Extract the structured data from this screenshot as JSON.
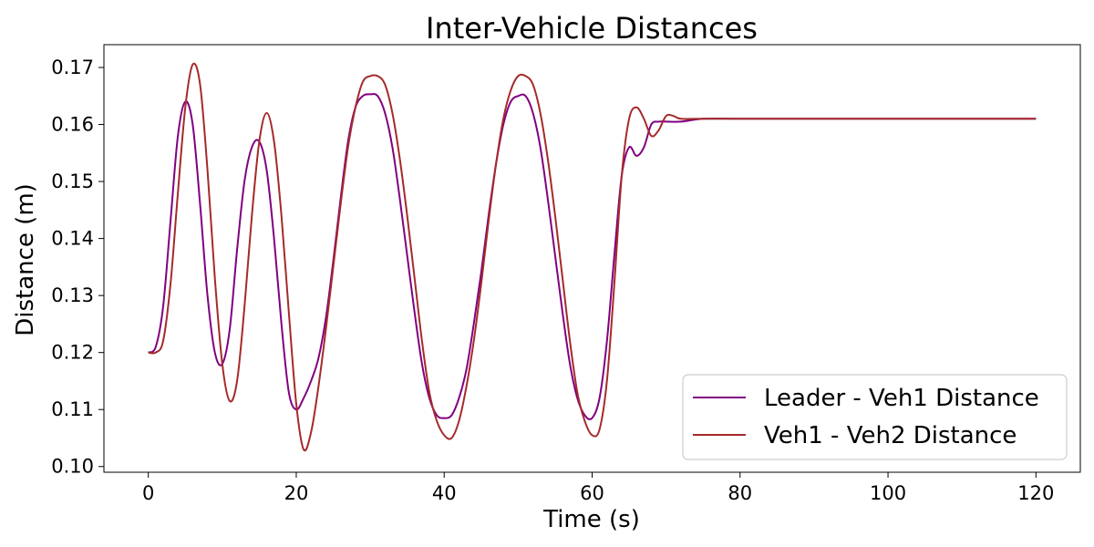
{
  "chart_data": {
    "type": "line",
    "title": "Inter-Vehicle Distances",
    "xlabel": "Time (s)",
    "ylabel": "Distance (m)",
    "xlim": [
      -6,
      126
    ],
    "ylim": [
      0.099,
      0.174
    ],
    "xticks": [
      0,
      20,
      40,
      60,
      80,
      100,
      120
    ],
    "yticks": [
      0.1,
      0.11,
      0.12,
      0.13,
      0.14,
      0.15,
      0.16,
      0.17
    ],
    "ytick_labels": [
      "0.10",
      "0.11",
      "0.12",
      "0.13",
      "0.14",
      "0.15",
      "0.16",
      "0.17"
    ],
    "grid": false,
    "legend_position": "lower-right",
    "series": [
      {
        "name": "Leader - Veh1 Distance",
        "color": "#800080",
        "points": [
          [
            0,
            0.12
          ],
          [
            1,
            0.121
          ],
          [
            2,
            0.128
          ],
          [
            3,
            0.143
          ],
          [
            4,
            0.158
          ],
          [
            5,
            0.164
          ],
          [
            6,
            0.16
          ],
          [
            7,
            0.146
          ],
          [
            8,
            0.13
          ],
          [
            9,
            0.12
          ],
          [
            10,
            0.118
          ],
          [
            11,
            0.124
          ],
          [
            12,
            0.138
          ],
          [
            13,
            0.15
          ],
          [
            14,
            0.156
          ],
          [
            15,
            0.157
          ],
          [
            16,
            0.152
          ],
          [
            17,
            0.14
          ],
          [
            18,
            0.125
          ],
          [
            19,
            0.113
          ],
          [
            20,
            0.11
          ],
          [
            21,
            0.112
          ],
          [
            22,
            0.115
          ],
          [
            23,
            0.119
          ],
          [
            24,
            0.126
          ],
          [
            25,
            0.136
          ],
          [
            26,
            0.147
          ],
          [
            27,
            0.157
          ],
          [
            28,
            0.163
          ],
          [
            29,
            0.165
          ],
          [
            30,
            0.1653
          ],
          [
            31,
            0.165
          ],
          [
            32,
            0.162
          ],
          [
            33,
            0.156
          ],
          [
            34,
            0.147
          ],
          [
            35,
            0.137
          ],
          [
            36,
            0.127
          ],
          [
            37,
            0.118
          ],
          [
            38,
            0.112
          ],
          [
            39,
            0.109
          ],
          [
            40,
            0.1085
          ],
          [
            41,
            0.109
          ],
          [
            42,
            0.112
          ],
          [
            43,
            0.117
          ],
          [
            44,
            0.125
          ],
          [
            45,
            0.134
          ],
          [
            46,
            0.144
          ],
          [
            47,
            0.153
          ],
          [
            48,
            0.16
          ],
          [
            49,
            0.164
          ],
          [
            50,
            0.165
          ],
          [
            51,
            0.165
          ],
          [
            52,
            0.162
          ],
          [
            53,
            0.156
          ],
          [
            54,
            0.147
          ],
          [
            55,
            0.137
          ],
          [
            56,
            0.127
          ],
          [
            57,
            0.118
          ],
          [
            58,
            0.112
          ],
          [
            59,
            0.109
          ],
          [
            60,
            0.1085
          ],
          [
            61,
            0.112
          ],
          [
            62,
            0.122
          ],
          [
            63,
            0.137
          ],
          [
            64,
            0.151
          ],
          [
            65,
            0.156
          ],
          [
            66,
            0.1545
          ],
          [
            67,
            0.156
          ],
          [
            68,
            0.16
          ],
          [
            69,
            0.1605
          ],
          [
            70,
            0.1605
          ],
          [
            72,
            0.1605
          ],
          [
            75,
            0.161
          ],
          [
            80,
            0.161
          ],
          [
            90,
            0.161
          ],
          [
            100,
            0.161
          ],
          [
            110,
            0.161
          ],
          [
            120,
            0.161
          ]
        ]
      },
      {
        "name": "Veh1 - Veh2 Distance",
        "color": "#A52A2A",
        "points": [
          [
            0,
            0.12
          ],
          [
            1,
            0.12
          ],
          [
            2,
            0.122
          ],
          [
            3,
            0.132
          ],
          [
            4,
            0.148
          ],
          [
            5,
            0.163
          ],
          [
            6,
            0.1705
          ],
          [
            7,
            0.167
          ],
          [
            8,
            0.152
          ],
          [
            9,
            0.133
          ],
          [
            10,
            0.118
          ],
          [
            11,
            0.1115
          ],
          [
            12,
            0.115
          ],
          [
            13,
            0.128
          ],
          [
            14,
            0.144
          ],
          [
            15,
            0.157
          ],
          [
            16,
            0.162
          ],
          [
            17,
            0.157
          ],
          [
            18,
            0.144
          ],
          [
            19,
            0.127
          ],
          [
            20,
            0.111
          ],
          [
            21,
            0.103
          ],
          [
            22,
            0.106
          ],
          [
            23,
            0.114
          ],
          [
            24,
            0.124
          ],
          [
            25,
            0.135
          ],
          [
            26,
            0.146
          ],
          [
            27,
            0.156
          ],
          [
            28,
            0.163
          ],
          [
            29,
            0.1675
          ],
          [
            30,
            0.1685
          ],
          [
            31,
            0.1685
          ],
          [
            32,
            0.167
          ],
          [
            33,
            0.162
          ],
          [
            34,
            0.154
          ],
          [
            35,
            0.144
          ],
          [
            36,
            0.133
          ],
          [
            37,
            0.122
          ],
          [
            38,
            0.113
          ],
          [
            39,
            0.108
          ],
          [
            40,
            0.1055
          ],
          [
            41,
            0.105
          ],
          [
            42,
            0.108
          ],
          [
            43,
            0.114
          ],
          [
            44,
            0.122
          ],
          [
            45,
            0.132
          ],
          [
            46,
            0.143
          ],
          [
            47,
            0.153
          ],
          [
            48,
            0.161
          ],
          [
            49,
            0.166
          ],
          [
            50,
            0.1685
          ],
          [
            51,
            0.1685
          ],
          [
            52,
            0.167
          ],
          [
            53,
            0.162
          ],
          [
            54,
            0.154
          ],
          [
            55,
            0.144
          ],
          [
            56,
            0.133
          ],
          [
            57,
            0.122
          ],
          [
            58,
            0.113
          ],
          [
            59,
            0.108
          ],
          [
            60,
            0.1055
          ],
          [
            61,
            0.1065
          ],
          [
            62,
            0.115
          ],
          [
            63,
            0.132
          ],
          [
            64,
            0.151
          ],
          [
            65,
            0.161
          ],
          [
            66,
            0.163
          ],
          [
            67,
            0.161
          ],
          [
            68,
            0.158
          ],
          [
            69,
            0.159
          ],
          [
            70,
            0.1615
          ],
          [
            71,
            0.1615
          ],
          [
            72,
            0.161
          ],
          [
            75,
            0.161
          ],
          [
            80,
            0.161
          ],
          [
            90,
            0.161
          ],
          [
            100,
            0.161
          ],
          [
            110,
            0.161
          ],
          [
            120,
            0.161
          ]
        ]
      }
    ]
  }
}
